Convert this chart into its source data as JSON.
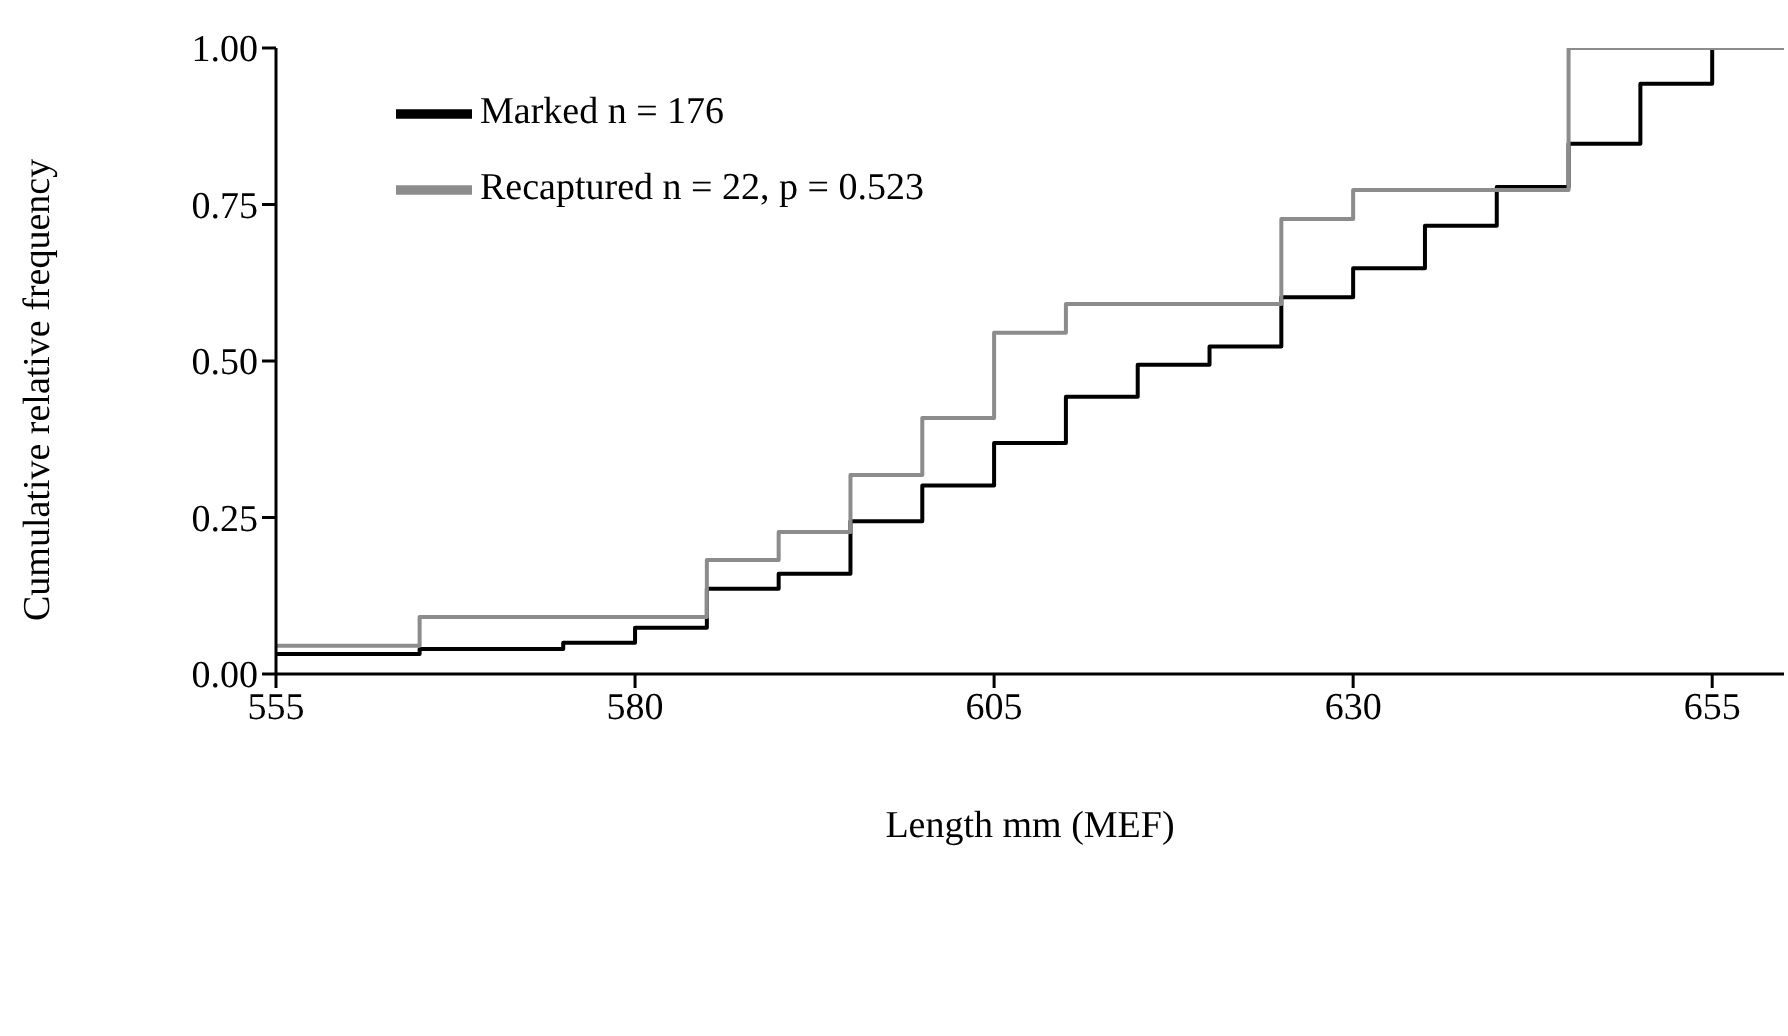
{
  "chart_data": {
    "type": "step",
    "xlabel": "Length mm (MEF)",
    "ylabel": "Cumulative relative frequency",
    "xlim": [
      555,
      660
    ],
    "xticks": [
      555,
      580,
      605,
      630,
      655
    ],
    "ylim": [
      0,
      1
    ],
    "yticks": [
      {
        "value": 0,
        "label": "0.00"
      },
      {
        "value": 0.25,
        "label": "0.25"
      },
      {
        "value": 0.5,
        "label": "0.50"
      },
      {
        "value": 0.75,
        "label": "0.75"
      },
      {
        "value": 1,
        "label": "1.00"
      }
    ],
    "grid": false,
    "legend": "top left",
    "marker": "none",
    "line_style": "solid",
    "series": [
      {
        "name": "Marked n = 176",
        "color": "#000000",
        "x": [
          555,
          565,
          575,
          580,
          585,
          590,
          595,
          600,
          605,
          610,
          615,
          620,
          625,
          630,
          635,
          640,
          645,
          650,
          655
        ],
        "values": [
          0.032,
          0.04,
          0.05,
          0.074,
          0.136,
          0.16,
          0.244,
          0.301,
          0.369,
          0.443,
          0.494,
          0.523,
          0.602,
          0.648,
          0.716,
          0.778,
          0.847,
          0.943,
          1
        ]
      },
      {
        "name": "Recaptured n = 22, p = 0.523",
        "color": "#8c8c8c",
        "x": [
          555,
          565,
          585,
          590,
          595,
          600,
          605,
          610,
          625,
          630,
          645,
          660
        ],
        "values": [
          0.045,
          0.091,
          0.182,
          0.227,
          0.318,
          0.409,
          0.545,
          0.591,
          0.727,
          0.773,
          1,
          1
        ]
      }
    ]
  }
}
